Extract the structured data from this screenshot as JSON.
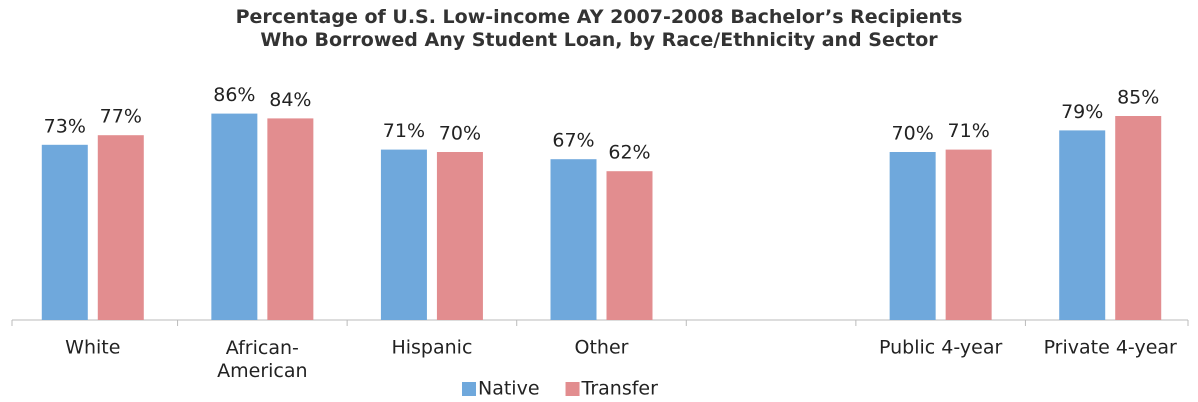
{
  "chart_data": {
    "type": "bar",
    "title": "Percentage of U.S. Low-income AY 2007-2008 Bachelor’s Recipients Who Borrowed Any Student Loan, by Race/Ethnicity and Sector",
    "categories": [
      "White",
      "African-American",
      "Hispanic",
      "Other",
      null,
      "Public 4-year",
      "Private 4-year"
    ],
    "series": [
      {
        "name": "Native",
        "color": "#6fa8dc",
        "values": [
          73,
          86,
          71,
          67,
          null,
          70,
          79
        ],
        "value_labels": [
          "73%",
          "86%",
          "71%",
          "67%",
          null,
          "70%",
          "79%"
        ]
      },
      {
        "name": "Transfer",
        "color": "#e28d8f",
        "values": [
          77,
          84,
          70,
          62,
          null,
          71,
          85
        ],
        "value_labels": [
          "77%",
          "84%",
          "70%",
          "62%",
          null,
          "71%",
          "85%"
        ]
      }
    ],
    "ylim": [
      0,
      100
    ],
    "legend": "bottom"
  }
}
